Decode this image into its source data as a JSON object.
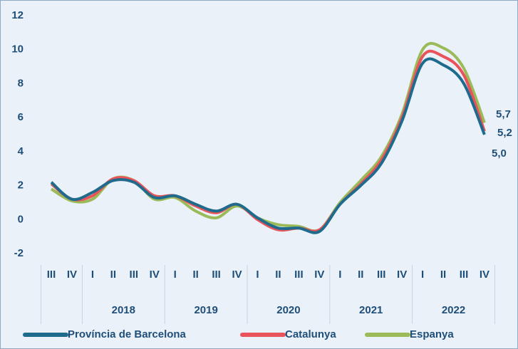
{
  "chart_data": {
    "type": "line",
    "categories": [
      "III",
      "IV",
      "I",
      "II",
      "III",
      "IV",
      "I",
      "II",
      "III",
      "IV",
      "I",
      "II",
      "III",
      "IV",
      "I",
      "II",
      "III",
      "IV",
      "I",
      "II",
      "III",
      "IV"
    ],
    "category_groups": [
      {
        "label": null,
        "size": 2
      },
      {
        "label": "2018",
        "size": 4
      },
      {
        "label": "2019",
        "size": 4
      },
      {
        "label": "2020",
        "size": 4
      },
      {
        "label": "2021",
        "size": 4
      },
      {
        "label": "2022",
        "size": 4
      }
    ],
    "series": [
      {
        "name": "Província de Barcelona",
        "color": "#1f6b8e",
        "values": [
          2.2,
          1.2,
          1.6,
          2.3,
          2.2,
          1.3,
          1.4,
          0.9,
          0.5,
          0.9,
          0.1,
          -0.5,
          -0.5,
          -0.7,
          0.9,
          2.0,
          3.3,
          5.8,
          9.2,
          9.1,
          8.0,
          5.0
        ],
        "value_labels": [
          null,
          null,
          null,
          null,
          null,
          null,
          null,
          null,
          null,
          null,
          null,
          null,
          null,
          null,
          null,
          null,
          null,
          null,
          null,
          null,
          null,
          "5,0"
        ]
      },
      {
        "name": "Catalunya",
        "color": "#e8545a",
        "values": [
          2.1,
          1.2,
          1.4,
          2.4,
          2.3,
          1.4,
          1.4,
          0.8,
          0.4,
          0.9,
          0.0,
          -0.6,
          -0.5,
          -0.6,
          0.9,
          2.1,
          3.5,
          6.0,
          9.6,
          9.6,
          8.5,
          5.2
        ],
        "value_labels": [
          null,
          null,
          null,
          null,
          null,
          null,
          null,
          null,
          null,
          null,
          null,
          null,
          null,
          null,
          null,
          null,
          null,
          null,
          null,
          null,
          null,
          "5,2"
        ]
      },
      {
        "name": "Espanya",
        "color": "#9bbb59",
        "values": [
          1.8,
          1.1,
          1.2,
          2.4,
          2.3,
          1.2,
          1.3,
          0.5,
          0.1,
          0.8,
          0.1,
          -0.3,
          -0.4,
          -0.6,
          1.0,
          2.3,
          3.7,
          6.2,
          10.0,
          10.1,
          8.9,
          5.7
        ],
        "value_labels": [
          null,
          null,
          null,
          null,
          null,
          null,
          null,
          null,
          null,
          null,
          null,
          null,
          null,
          null,
          null,
          null,
          null,
          null,
          null,
          null,
          null,
          "5,7"
        ]
      }
    ],
    "ylim": [
      -2,
      12
    ],
    "yticks": [
      -2,
      0,
      2,
      4,
      6,
      8,
      10,
      12
    ],
    "grid": false,
    "legend": "bottom"
  }
}
